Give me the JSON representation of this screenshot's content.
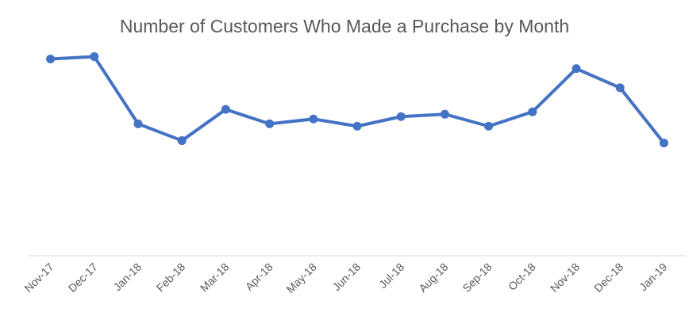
{
  "chart_data": {
    "type": "line",
    "title": "Number of Customers Who Made a Purchase by Month",
    "xlabel": "",
    "ylabel": "",
    "categories": [
      "Nov-17",
      "Dec-17",
      "Jan-18",
      "Feb-18",
      "Mar-18",
      "Apr-18",
      "May-18",
      "Jun-18",
      "Jul-18",
      "Aug-18",
      "Sep-18",
      "Oct-18",
      "Nov-18",
      "Dec-18",
      "Jan-19"
    ],
    "series": [
      {
        "values": [
          0.82,
          0.83,
          0.55,
          0.48,
          0.61,
          0.55,
          0.57,
          0.54,
          0.58,
          0.59,
          0.54,
          0.6,
          0.78,
          0.7,
          0.47
        ]
      }
    ],
    "ylim": [
      0,
      1
    ],
    "y_axis_visible": false,
    "grid": false,
    "legend": "none",
    "line_color": "#4472C4",
    "axis_color": "#D9D9D9"
  }
}
